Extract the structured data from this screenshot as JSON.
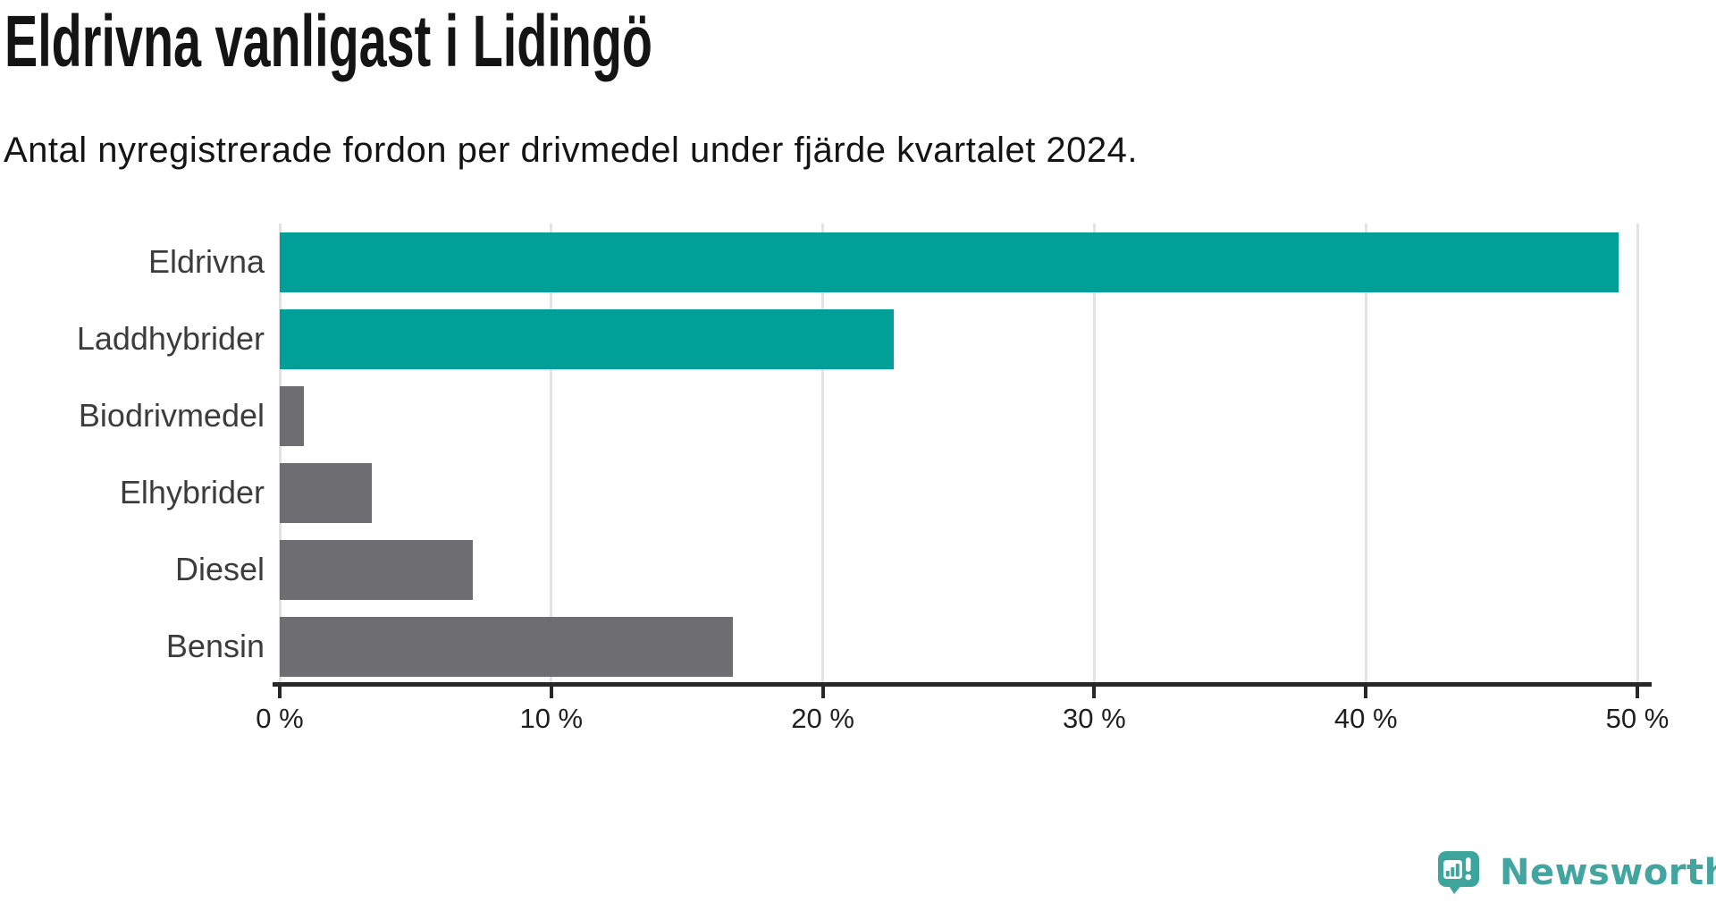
{
  "chart_data": {
    "type": "bar",
    "orientation": "horizontal",
    "title": "Eldrivna vanligast i Lidingö",
    "subtitle": "Antal nyregistrerade fordon per drivmedel under fjärde kvartalet 2024.",
    "categories": [
      "Eldrivna",
      "Laddhybrider",
      "Biodrivmedel",
      "Elhybrider",
      "Diesel",
      "Bensin"
    ],
    "values": [
      49.3,
      22.6,
      0.9,
      3.4,
      7.1,
      16.7
    ],
    "unit": "%",
    "xlabel": "",
    "ylabel": "",
    "xlim": [
      0,
      50
    ],
    "xticks": [
      0,
      10,
      20,
      30,
      40,
      50
    ],
    "xtick_labels": [
      "0 %",
      "10 %",
      "20 %",
      "30 %",
      "40 %",
      "50 %"
    ],
    "grid": true,
    "legend": false,
    "bar_colors": [
      "#00a099",
      "#00a099",
      "#6d6d72",
      "#6d6d72",
      "#6d6d72",
      "#6d6d72"
    ],
    "colors": {
      "highlight": "#00a099",
      "default": "#6d6d72",
      "axis": "#282828",
      "gridline": "#e2e2e2"
    }
  },
  "branding": {
    "logo_text": "Newsworthy",
    "logo_icon": "newsworthy-bar-chart-bubble-icon",
    "logo_color": "#3ea49e"
  }
}
